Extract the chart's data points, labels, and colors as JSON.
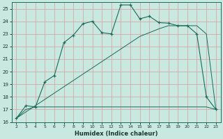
{
  "xlabel": "Humidex (Indice chaleur)",
  "bg_color": "#c8e8e0",
  "grid_color": "#d4a8a8",
  "line_color": "#1a6b5a",
  "x_humidex": [
    2,
    3,
    4,
    5,
    6,
    7,
    8,
    9,
    10,
    11,
    12,
    13,
    14,
    15,
    16,
    17,
    18,
    19,
    20,
    21,
    22,
    23
  ],
  "y_curve": [
    16.3,
    17.3,
    17.2,
    19.2,
    19.7,
    22.3,
    22.9,
    23.8,
    24.0,
    23.1,
    23.0,
    25.3,
    25.3,
    24.2,
    24.4,
    23.9,
    23.85,
    23.65,
    23.65,
    23.0,
    18.0,
    17.0
  ],
  "y_diag1": [
    16.3,
    16.8,
    17.3,
    17.8,
    18.3,
    18.8,
    19.3,
    19.8,
    20.3,
    20.8,
    21.3,
    21.8,
    22.3,
    22.8,
    23.1,
    23.4,
    23.65,
    23.65,
    23.65,
    23.65,
    23.0,
    17.0
  ],
  "y_diag2": [
    16.3,
    17.0,
    17.2,
    17.2,
    17.2,
    17.2,
    17.2,
    17.2,
    17.2,
    17.2,
    17.2,
    17.2,
    17.2,
    17.2,
    17.2,
    17.2,
    17.2,
    17.2,
    17.2,
    17.2,
    17.2,
    17.0
  ],
  "xlim": [
    1.5,
    23.5
  ],
  "ylim": [
    16.0,
    25.5
  ],
  "yticks": [
    16,
    17,
    18,
    19,
    20,
    21,
    22,
    23,
    24,
    25
  ],
  "xticks": [
    2,
    3,
    4,
    5,
    6,
    7,
    8,
    9,
    10,
    11,
    12,
    13,
    14,
    15,
    16,
    17,
    18,
    19,
    20,
    21,
    22,
    23
  ]
}
